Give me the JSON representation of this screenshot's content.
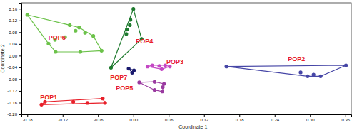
{
  "chart_data": {
    "type": "scatter",
    "x_label": "Coordinate 1",
    "y_label": "Coordinate 2",
    "xlim": [
      -0.19,
      0.37
    ],
    "ylim": [
      -0.2,
      0.18
    ],
    "xticks": [
      {
        "value": -0.18,
        "label": "-0.18"
      },
      {
        "value": -0.12,
        "label": "-0.12"
      },
      {
        "value": -0.06,
        "label": "-0.06"
      },
      {
        "value": 0,
        "label": "0.00"
      },
      {
        "value": 0.06,
        "label": "0.06"
      },
      {
        "value": 0.12,
        "label": "0.12"
      },
      {
        "value": 0.18,
        "label": "0.18"
      },
      {
        "value": 0.24,
        "label": "0.24"
      },
      {
        "value": 0.3,
        "label": "0.30"
      },
      {
        "value": 0.36,
        "label": "0.36"
      }
    ],
    "yticks": [
      {
        "value": -0.2,
        "label": "-0.20"
      },
      {
        "value": -0.16,
        "label": "-0.16"
      },
      {
        "value": -0.12,
        "label": "-0.12"
      },
      {
        "value": -0.08,
        "label": "-0.08"
      },
      {
        "value": -0.04,
        "label": "-0.04"
      },
      {
        "value": 0,
        "label": "0.00"
      },
      {
        "value": 0.04,
        "label": "0.04"
      },
      {
        "value": 0.08,
        "label": "0.08"
      },
      {
        "value": 0.12,
        "label": "0.12"
      },
      {
        "value": 0.16,
        "label": "0.16"
      }
    ],
    "marker": "circle",
    "series": [
      {
        "name": "POP1",
        "color": "#e8202a",
        "x": [
          -0.15,
          -0.052,
          -0.048,
          -0.156,
          -0.102,
          -0.078
        ],
        "values": [
          -0.157,
          -0.146,
          -0.161,
          -0.167,
          -0.157,
          -0.161
        ]
      },
      {
        "name": "POP2",
        "color": "#4646a6",
        "x": [
          0.158,
          0.284,
          0.296,
          0.306,
          0.318,
          0.361
        ],
        "values": [
          -0.037,
          -0.057,
          -0.07,
          -0.065,
          -0.07,
          -0.033
        ]
      },
      {
        "name": "POP3",
        "color": "#c447c4",
        "x": [
          0.024,
          0.032,
          0.044,
          0.054,
          0.062,
          0.048
        ],
        "values": [
          -0.037,
          -0.033,
          -0.035,
          -0.033,
          -0.037,
          -0.046
        ]
      },
      {
        "name": "POP4",
        "color": "#1e7a2e",
        "x": [
          0.0,
          -0.005,
          -0.006,
          -0.011,
          -0.012,
          -0.038,
          0.014
        ],
        "values": [
          0.159,
          0.122,
          0.104,
          0.089,
          0.074,
          -0.041,
          0.057
        ]
      },
      {
        "name": "POP5",
        "color": "#9a3aa0",
        "x": [
          0.01,
          0.036,
          0.052,
          0.05,
          0.049,
          0.036
        ],
        "values": [
          -0.091,
          -0.089,
          -0.096,
          -0.107,
          -0.122,
          -0.117
        ]
      },
      {
        "name": "POP6",
        "color": "#6cc24a",
        "x": [
          -0.18,
          -0.108,
          -0.092,
          -0.098,
          -0.082,
          -0.068,
          -0.116,
          -0.133,
          -0.144,
          -0.132,
          -0.054,
          -0.09
        ],
        "values": [
          0.139,
          0.104,
          0.096,
          0.085,
          0.078,
          0.067,
          0.063,
          0.054,
          0.041,
          0.013,
          0.017,
          0.013
        ]
      },
      {
        "name": "POP7",
        "color": "#1a1a6e",
        "x": [
          -0.008,
          0.001,
          -0.002
        ],
        "values": [
          -0.044,
          -0.05,
          -0.058
        ]
      }
    ]
  }
}
